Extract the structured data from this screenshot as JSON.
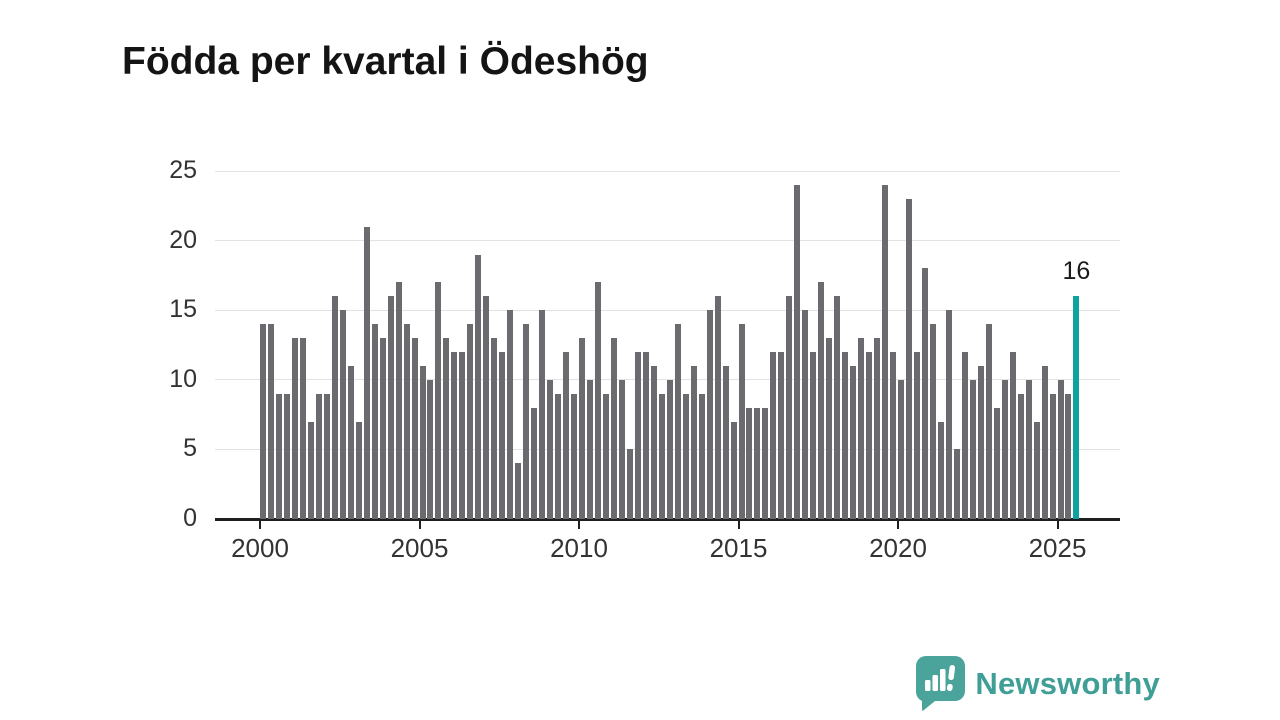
{
  "page": {
    "background": "#ffffff"
  },
  "header": {
    "title": "Födda per kvartal i Ödeshög"
  },
  "chart_data": {
    "type": "bar",
    "title": "Födda per kvartal i Ödeshög",
    "x_unit": "quarter",
    "x_start_year": 2000,
    "x_end": "2025 Q3",
    "x_tick_labels": [
      "2000",
      "2005",
      "2010",
      "2015",
      "2020",
      "2025"
    ],
    "y_ticks": [
      0,
      5,
      10,
      15,
      20,
      25
    ],
    "ylim": [
      0,
      25
    ],
    "grid": "horizontal",
    "bar_color": "#6a6a6f",
    "series": [
      {
        "name": "Födda per kvartal",
        "values": [
          14,
          14,
          9,
          9,
          13,
          13,
          7,
          9,
          9,
          16,
          15,
          11,
          7,
          21,
          14,
          13,
          16,
          17,
          14,
          13,
          11,
          10,
          17,
          13,
          12,
          12,
          14,
          19,
          16,
          13,
          12,
          15,
          4,
          14,
          8,
          15,
          10,
          9,
          12,
          9,
          13,
          10,
          17,
          9,
          13,
          10,
          5,
          12,
          12,
          11,
          9,
          10,
          14,
          9,
          11,
          9,
          15,
          16,
          11,
          7,
          14,
          8,
          8,
          8,
          12,
          12,
          16,
          24,
          15,
          12,
          17,
          13,
          16,
          12,
          11,
          13,
          12,
          13,
          24,
          12,
          10,
          23,
          12,
          18,
          14,
          7,
          15,
          5,
          12,
          10,
          11,
          14,
          8,
          10,
          12,
          9,
          10,
          7,
          11,
          9,
          10,
          9,
          16
        ]
      }
    ],
    "highlight": {
      "index": 102,
      "value": 16,
      "label": "16",
      "color": "#0ea3a1"
    }
  },
  "footer": {
    "brand": "Newsworthy",
    "brand_text_color": "#3f9e96",
    "logo_color": "#4ba49c"
  }
}
